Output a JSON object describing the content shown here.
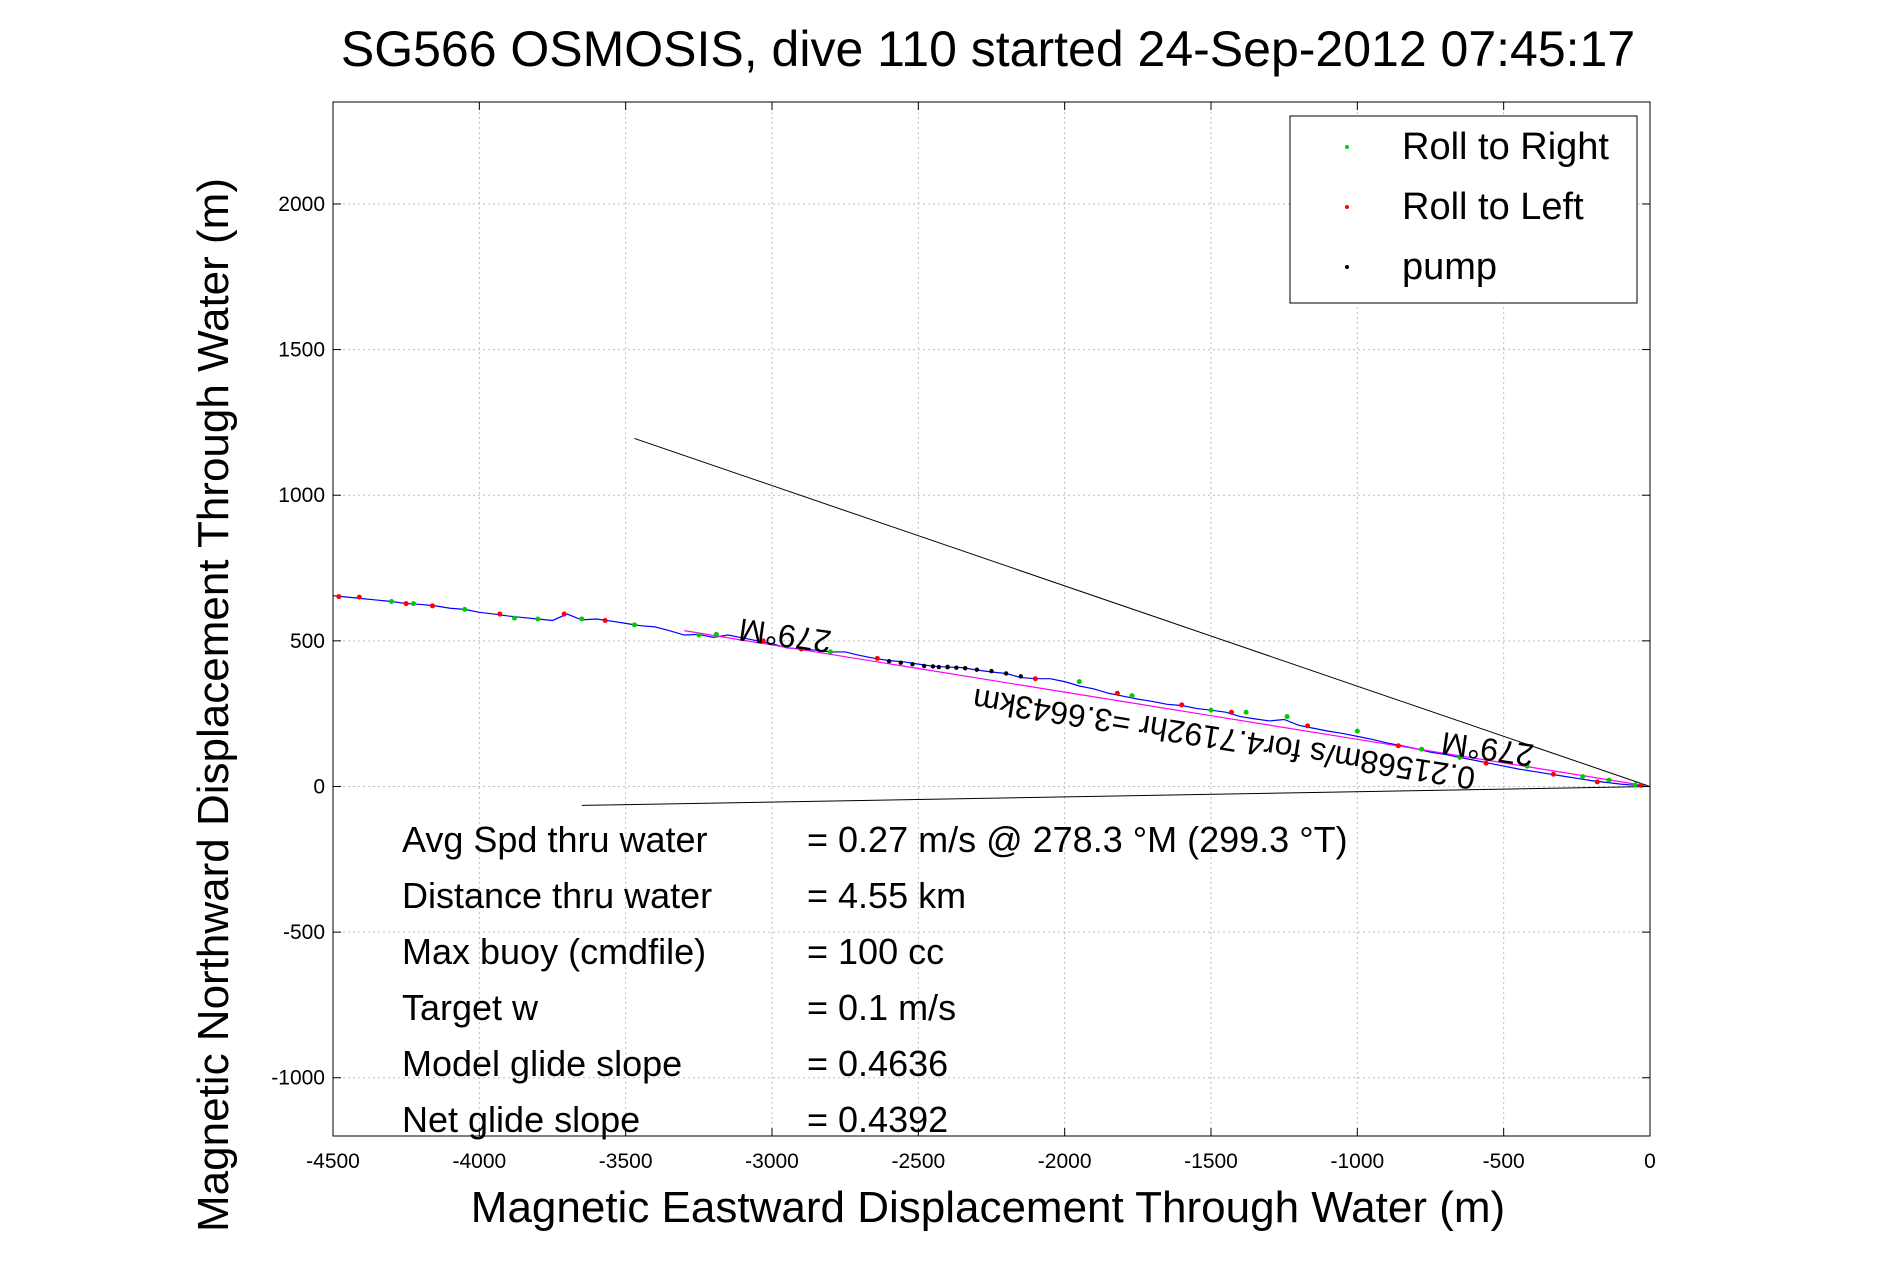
{
  "chart_data": {
    "type": "line",
    "title": "SG566 OSMOSIS, dive 110 started 24-Sep-2012 07:45:17",
    "xlabel": "Magnetic Eastward Displacement Through Water (m)",
    "ylabel": "Magnetic Northward Displacement Through Water (m)",
    "xlim": [
      -4500,
      0
    ],
    "ylim": [
      -1200,
      2350
    ],
    "xticks": [
      -4500,
      -4000,
      -3500,
      -3000,
      -2500,
      -2000,
      -1500,
      -1000,
      -500,
      0
    ],
    "yticks": [
      -1000,
      -500,
      0,
      500,
      1000,
      1500,
      2000
    ],
    "grid": true,
    "legend_position": "top-right",
    "legend": [
      {
        "label": "Roll to Right",
        "color": "#00cc00"
      },
      {
        "label": "Roll to Left",
        "color": "#ff0000"
      },
      {
        "label": "pump",
        "color": "#000000"
      }
    ],
    "track": {
      "color": "#0000ff",
      "x": [
        -4500,
        -4450,
        -4400,
        -4350,
        -4300,
        -4250,
        -4200,
        -4150,
        -4100,
        -4050,
        -4000,
        -3950,
        -3900,
        -3850,
        -3800,
        -3750,
        -3700,
        -3650,
        -3600,
        -3550,
        -3500,
        -3450,
        -3400,
        -3350,
        -3300,
        -3250,
        -3200,
        -3150,
        -3100,
        -3050,
        -3000,
        -2950,
        -2900,
        -2850,
        -2800,
        -2750,
        -2700,
        -2650,
        -2600,
        -2550,
        -2500,
        -2450,
        -2400,
        -2350,
        -2300,
        -2250,
        -2200,
        -2150,
        -2100,
        -2050,
        -2000,
        -1950,
        -1900,
        -1850,
        -1800,
        -1750,
        -1700,
        -1650,
        -1600,
        -1550,
        -1500,
        -1450,
        -1400,
        -1350,
        -1300,
        -1250,
        -1200,
        -1150,
        -1100,
        -1050,
        -1000,
        -950,
        -900,
        -850,
        -800,
        -750,
        -700,
        -650,
        -600,
        -550,
        -500,
        -450,
        -400,
        -350,
        -300,
        -250,
        -200,
        -150,
        -100,
        -50,
        0
      ],
      "y": [
        655,
        650,
        645,
        640,
        635,
        628,
        625,
        620,
        612,
        608,
        598,
        592,
        585,
        580,
        575,
        570,
        592,
        572,
        575,
        568,
        560,
        552,
        548,
        535,
        520,
        522,
        512,
        520,
        510,
        500,
        490,
        476,
        472,
        468,
        462,
        462,
        450,
        440,
        432,
        428,
        420,
        413,
        410,
        408,
        400,
        393,
        388,
        374,
        370,
        370,
        360,
        345,
        335,
        320,
        310,
        300,
        292,
        282,
        278,
        268,
        262,
        255,
        240,
        232,
        225,
        230,
        210,
        200,
        190,
        182,
        172,
        162,
        150,
        140,
        130,
        118,
        110,
        100,
        90,
        80,
        70,
        60,
        52,
        44,
        36,
        28,
        20,
        14,
        8,
        4,
        0
      ]
    },
    "fit_track": {
      "color": "#ff00ff",
      "x": [
        -3300,
        -3000,
        -2500,
        -2000,
        -1500,
        -1000,
        -500,
        0
      ],
      "y": [
        535,
        486,
        405,
        324,
        243,
        162,
        81,
        0
      ]
    },
    "roll_right_points": {
      "x": [
        -4300,
        -4225,
        -4050,
        -3880,
        -3800,
        -3650,
        -3470,
        -3250,
        -3190,
        -2800,
        -2400,
        -1950,
        -1770,
        -1500,
        -1380,
        -1240,
        -1000,
        -780,
        -650,
        -420,
        -230,
        -140,
        -50
      ],
      "y": [
        635,
        628,
        608,
        578,
        575,
        575,
        555,
        520,
        522,
        462,
        410,
        360,
        312,
        262,
        255,
        240,
        190,
        128,
        100,
        70,
        34,
        22,
        6
      ]
    },
    "roll_left_points": {
      "x": [
        -4480,
        -4410,
        -4250,
        -4160,
        -3930,
        -3710,
        -3570,
        -3030,
        -2900,
        -2640,
        -2100,
        -1820,
        -1600,
        -1430,
        -1170,
        -860,
        -560,
        -330,
        -180,
        -30
      ],
      "y": [
        652,
        650,
        628,
        620,
        592,
        592,
        570,
        500,
        472,
        440,
        370,
        320,
        280,
        255,
        208,
        140,
        80,
        42,
        16,
        4
      ]
    },
    "pump_points": {
      "x": [
        -2600,
        -2560,
        -2520,
        -2480,
        -2450,
        -2430,
        -2400,
        -2370,
        -2340,
        -2300,
        -2250,
        -2200,
        -2150
      ],
      "y": [
        430,
        425,
        420,
        414,
        412,
        410,
        410,
        408,
        406,
        401,
        396,
        388,
        378
      ]
    },
    "ref_lines": [
      {
        "x": [
          -3470,
          0
        ],
        "y": [
          1195,
          0
        ]
      },
      {
        "x": [
          -3650,
          0
        ],
        "y": [
          -65,
          0
        ]
      }
    ],
    "annotations": [
      {
        "text": "279°M",
        "x": -2950,
        "y": 555
      },
      {
        "text": "0.21568m/s for4.7192hr =3.6643km",
        "x": -1450,
        "y": 200
      },
      {
        "text": "279°M",
        "x": -550,
        "y": 165
      }
    ],
    "info_box": [
      {
        "label": "Avg Spd thru water",
        "value": "=  0.27 m/s @ 278.3 °M (299.3 °T)"
      },
      {
        "label": "Distance thru water",
        "value": "=  4.55 km"
      },
      {
        "label": "Max buoy (cmdfile)",
        "value": "= 100 cc"
      },
      {
        "label": "Target w",
        "value": "= 0.1 m/s"
      },
      {
        "label": "Model glide slope",
        "value": "= 0.4636"
      },
      {
        "label": "Net glide slope",
        "value": "= 0.4392"
      }
    ]
  }
}
